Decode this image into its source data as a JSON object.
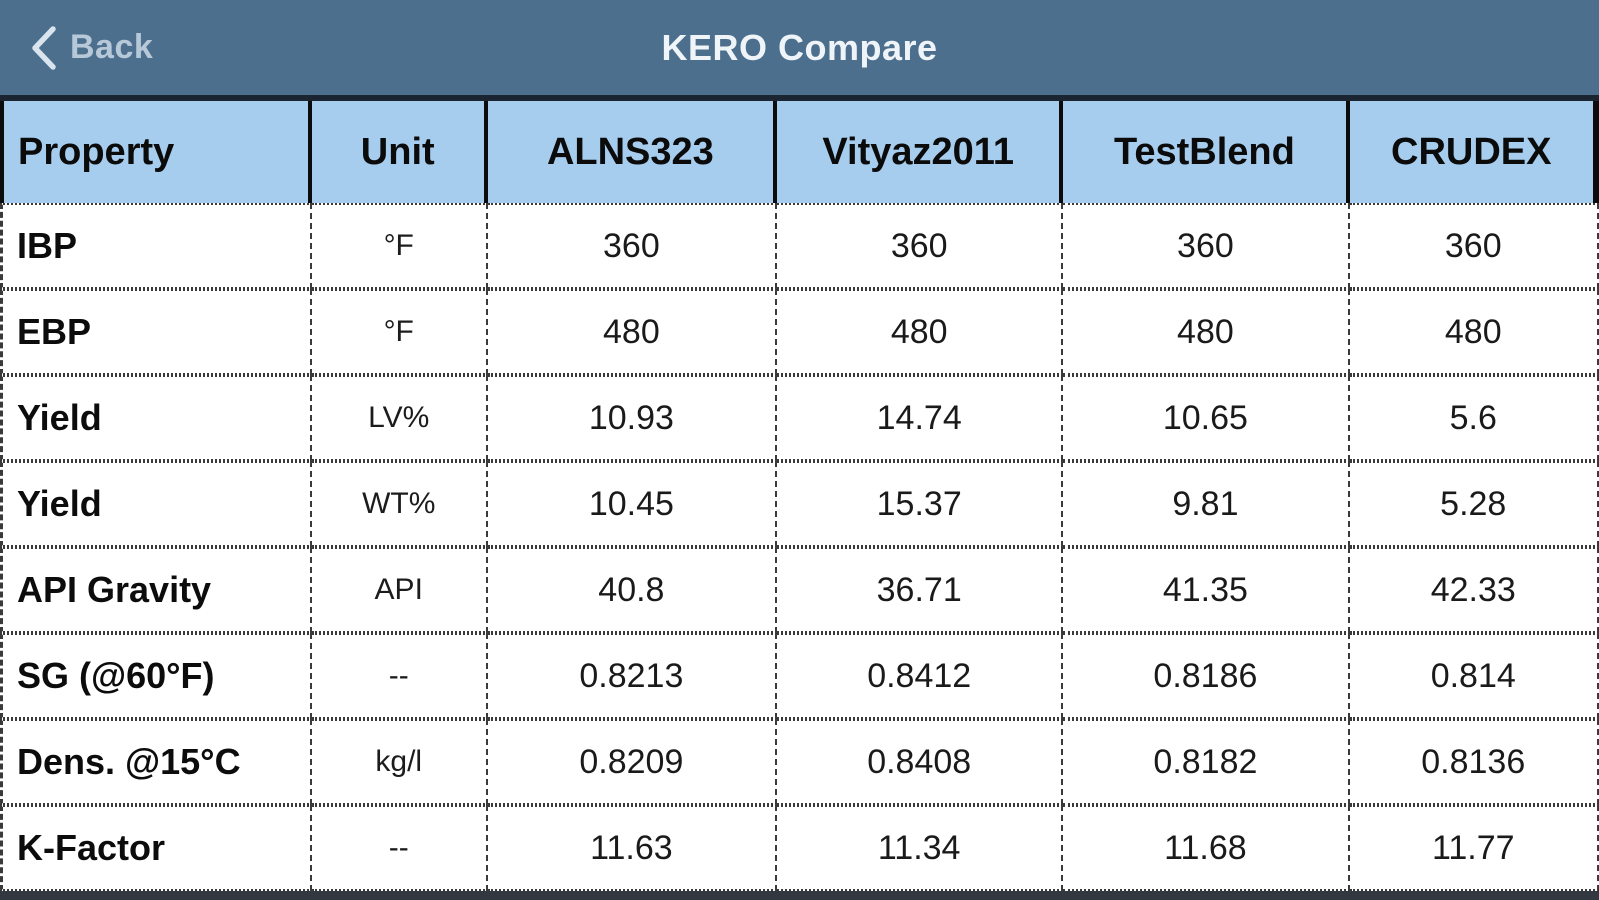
{
  "navbar": {
    "back_label": "Back",
    "title": "KERO Compare"
  },
  "table": {
    "columns": [
      "Property",
      "Unit",
      "ALNS323",
      "Vityaz2011",
      "TestBlend",
      "CRUDEX"
    ],
    "rows": [
      {
        "property": "IBP",
        "unit": "°F",
        "values": [
          "360",
          "360",
          "360",
          "360"
        ]
      },
      {
        "property": "EBP",
        "unit": "°F",
        "values": [
          "480",
          "480",
          "480",
          "480"
        ]
      },
      {
        "property": "Yield",
        "unit": "LV%",
        "values": [
          "10.93",
          "14.74",
          "10.65",
          "5.6"
        ]
      },
      {
        "property": "Yield",
        "unit": "WT%",
        "values": [
          "10.45",
          "15.37",
          "9.81",
          "5.28"
        ]
      },
      {
        "property": "API Gravity",
        "unit": "API",
        "values": [
          "40.8",
          "36.71",
          "41.35",
          "42.33"
        ]
      },
      {
        "property": "SG (@60°F)",
        "unit": "--",
        "values": [
          "0.8213",
          "0.8412",
          "0.8186",
          "0.814"
        ]
      },
      {
        "property": "Dens. @15°C",
        "unit": "kg/l",
        "values": [
          "0.8209",
          "0.8408",
          "0.8182",
          "0.8136"
        ]
      },
      {
        "property": "K-Factor",
        "unit": "--",
        "values": [
          "11.63",
          "11.34",
          "11.68",
          "11.77"
        ]
      }
    ]
  },
  "colors": {
    "navbar_bg": "#4c6f8e",
    "navbar_title": "#eff4f9",
    "back_text": "#b7c8d8",
    "header_bg": "#a6cdee",
    "header_text": "#0b0b0b",
    "body_bg": "#ffffff",
    "body_text": "#1a1a1a",
    "grid_line": "#3a3a3a",
    "table_top_border": "#1b2531"
  }
}
